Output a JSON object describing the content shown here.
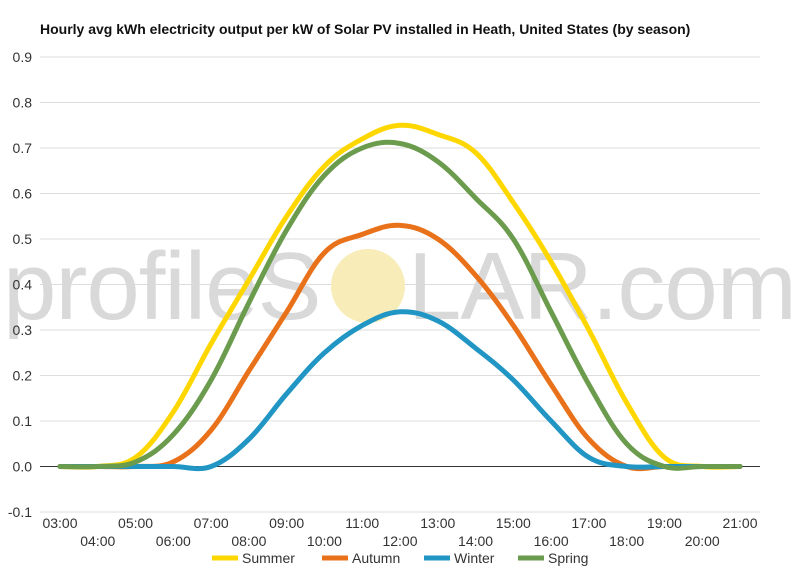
{
  "chart_data": {
    "type": "line",
    "title": "Hourly avg kWh electricity output per kW of Solar PV installed in Heath, United States (by season)",
    "xlabel": "",
    "ylabel": "",
    "x": [
      "03:00",
      "04:00",
      "05:00",
      "06:00",
      "07:00",
      "08:00",
      "09:00",
      "10:00",
      "11:00",
      "12:00",
      "13:00",
      "14:00",
      "15:00",
      "16:00",
      "17:00",
      "18:00",
      "19:00",
      "20:00",
      "21:00"
    ],
    "ylim": [
      -0.1,
      0.9
    ],
    "yticks": [
      "-0.1",
      "0.0",
      "0.1",
      "0.2",
      "0.3",
      "0.4",
      "0.5",
      "0.6",
      "0.7",
      "0.8",
      "0.9"
    ],
    "grid": true,
    "legend_position": "bottom",
    "series": [
      {
        "name": "Summer",
        "color": "#FFD700",
        "values": [
          0.0,
          0.0,
          0.02,
          0.12,
          0.27,
          0.41,
          0.55,
          0.66,
          0.72,
          0.75,
          0.73,
          0.69,
          0.58,
          0.45,
          0.3,
          0.14,
          0.02,
          0.0,
          0.0
        ]
      },
      {
        "name": "Autumn",
        "color": "#E8711A",
        "values": [
          0.0,
          0.0,
          0.0,
          0.01,
          0.08,
          0.21,
          0.34,
          0.47,
          0.51,
          0.53,
          0.5,
          0.42,
          0.31,
          0.18,
          0.06,
          0.0,
          0.0,
          0.0,
          0.0
        ]
      },
      {
        "name": "Winter",
        "color": "#2196C4",
        "values": [
          0.0,
          0.0,
          0.0,
          0.0,
          0.0,
          0.06,
          0.16,
          0.25,
          0.31,
          0.34,
          0.32,
          0.26,
          0.19,
          0.1,
          0.02,
          0.0,
          0.0,
          0.0,
          0.0
        ]
      },
      {
        "name": "Spring",
        "color": "#6B9B4D",
        "values": [
          0.0,
          0.0,
          0.01,
          0.07,
          0.19,
          0.36,
          0.52,
          0.64,
          0.7,
          0.71,
          0.67,
          0.59,
          0.5,
          0.34,
          0.18,
          0.05,
          0.0,
          0.0,
          0.0
        ]
      }
    ]
  },
  "watermark": {
    "text_left": "profileS",
    "text_right": "LAR.com"
  }
}
